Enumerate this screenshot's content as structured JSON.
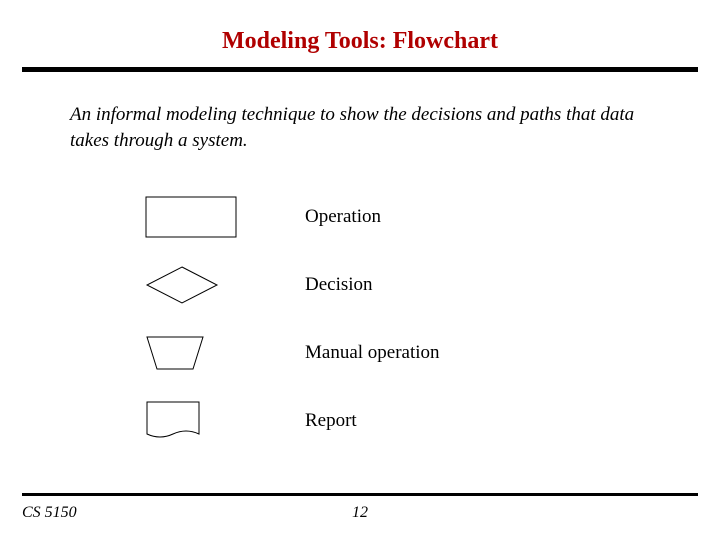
{
  "title": {
    "text": "Modeling Tools: Flowchart",
    "color": "#b00000",
    "fontsize": 24
  },
  "subtitle": {
    "text": "An informal modeling technique to show the decisions and paths that data takes through a system.",
    "fontsize": 19
  },
  "legend": {
    "items": [
      {
        "shape": "rectangle",
        "label": "Operation"
      },
      {
        "shape": "diamond",
        "label": "Decision"
      },
      {
        "shape": "trapezoid",
        "label": "Manual operation"
      },
      {
        "shape": "report",
        "label": "Report"
      }
    ],
    "label_fontsize": 19,
    "stroke_color": "#000000",
    "stroke_width": 1,
    "fill_color": "#ffffff"
  },
  "rules": {
    "title_rule_color": "#000000",
    "title_rule_height": 5,
    "footer_rule_color": "#000000",
    "footer_rule_height": 3
  },
  "footer": {
    "course": "CS 5150",
    "page": "12",
    "fontsize": 16
  },
  "background_color": "#ffffff"
}
